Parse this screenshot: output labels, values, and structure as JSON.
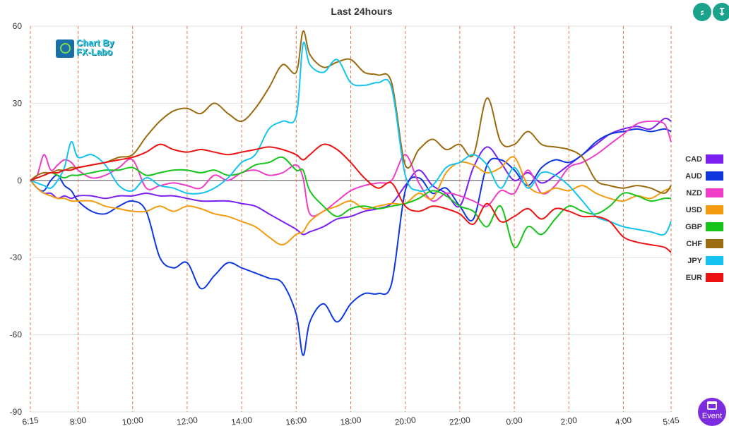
{
  "chart_data": {
    "type": "line",
    "title": "Last 24hours",
    "ylim": [
      -90,
      60
    ],
    "yticks": [
      60,
      30,
      0,
      -30,
      -60,
      -90
    ],
    "xticks": [
      "6:15",
      "8:00",
      "10:00",
      "12:00",
      "14:00",
      "16:00",
      "18:00",
      "20:00",
      "22:00",
      "0:00",
      "2:00",
      "4:00",
      "5:45"
    ],
    "x": [
      "6:15",
      "6:30",
      "6:45",
      "7:00",
      "7:15",
      "7:30",
      "7:45",
      "8:00",
      "8:30",
      "9:00",
      "9:30",
      "10:00",
      "10:30",
      "11:00",
      "11:30",
      "12:00",
      "12:30",
      "13:00",
      "13:30",
      "14:00",
      "14:30",
      "15:00",
      "15:30",
      "16:00",
      "16:15",
      "16:30",
      "17:00",
      "17:30",
      "18:00",
      "18:30",
      "19:00",
      "19:30",
      "20:00",
      "20:30",
      "21:00",
      "21:30",
      "22:00",
      "22:30",
      "23:00",
      "23:30",
      "0:00",
      "0:30",
      "1:00",
      "1:30",
      "2:00",
      "2:30",
      "3:00",
      "3:30",
      "4:00",
      "4:30",
      "5:00",
      "5:30",
      "5:45"
    ],
    "grid": true,
    "legend": "right",
    "series": [
      {
        "name": "CAD",
        "color": "#7b1ff0",
        "values": [
          0,
          -3,
          -5,
          -5,
          -7,
          -6,
          -7,
          -6,
          -6,
          -7,
          -6,
          -6,
          -5,
          -6,
          -6,
          -7,
          -8,
          -8,
          -8,
          -9,
          -10,
          -13,
          -16,
          -19,
          -21,
          -20,
          -18,
          -15,
          -14,
          -12,
          -11,
          -9,
          -2,
          4,
          -2,
          -5,
          -10,
          5,
          13,
          7,
          0,
          3,
          -1,
          2,
          6,
          10,
          14,
          18,
          20,
          21,
          20,
          24,
          23
        ]
      },
      {
        "name": "AUD",
        "color": "#0f37e0",
        "values": [
          0,
          -3,
          -4,
          0,
          2,
          -2,
          -4,
          -8,
          -12,
          -13,
          -10,
          -8,
          -12,
          -30,
          -34,
          -32,
          -42,
          -37,
          -32,
          -34,
          -36,
          -38,
          -40,
          -52,
          -68,
          -55,
          -48,
          -55,
          -48,
          -44,
          -44,
          -40,
          -4,
          1,
          -5,
          -3,
          -10,
          -15,
          6,
          8,
          4,
          -2,
          5,
          8,
          7,
          10,
          15,
          18,
          19,
          20,
          19,
          20,
          19
        ]
      },
      {
        "name": "NZD",
        "color": "#f03cc8",
        "values": [
          0,
          2,
          10,
          4,
          6,
          8,
          7,
          4,
          1,
          2,
          5,
          8,
          -3,
          -2,
          -1,
          -2,
          -3,
          2,
          0,
          3,
          4,
          2,
          3,
          6,
          1,
          -13,
          -12,
          -8,
          -4,
          -2,
          -1,
          0,
          10,
          -1,
          -8,
          -5,
          -6,
          -8,
          -10,
          -4,
          -5,
          4,
          -5,
          -2,
          5,
          7,
          10,
          14,
          18,
          22,
          23,
          22,
          15
        ]
      },
      {
        "name": "USD",
        "color": "#f59b0f",
        "values": [
          0,
          -3,
          -5,
          -6,
          -7,
          -7,
          -8,
          -8,
          -8,
          -10,
          -11,
          -12,
          -12,
          -10,
          -12,
          -10,
          -11,
          -13,
          -14,
          -16,
          -18,
          -22,
          -25,
          -21,
          -20,
          -16,
          -12,
          -10,
          -8,
          -11,
          -10,
          -9,
          -9,
          -5,
          -7,
          3,
          7,
          6,
          3,
          5,
          9,
          -2,
          -5,
          -3,
          -4,
          -2,
          -5,
          -7,
          -8,
          -6,
          -7,
          -4,
          -3
        ]
      },
      {
        "name": "GBP",
        "color": "#16c41a",
        "values": [
          0,
          1,
          2,
          3,
          2,
          1,
          2,
          2,
          3,
          4,
          4,
          5,
          2,
          3,
          4,
          4,
          3,
          4,
          2,
          3,
          6,
          7,
          9,
          4,
          4,
          -4,
          -10,
          -14,
          -11,
          -10,
          -11,
          -10,
          -9,
          -7,
          -4,
          -6,
          -10,
          -12,
          -18,
          -10,
          -26,
          -18,
          -21,
          -15,
          -10,
          -12,
          -13,
          -10,
          -5,
          -6,
          -8,
          -7,
          -7
        ]
      },
      {
        "name": "CHF",
        "color": "#9a6b0f",
        "values": [
          0,
          2,
          3,
          3,
          4,
          4,
          5,
          5,
          6,
          7,
          9,
          10,
          17,
          23,
          27,
          28,
          26,
          30,
          26,
          23,
          28,
          36,
          45,
          42,
          58,
          49,
          44,
          46,
          47,
          42,
          41,
          38,
          6,
          12,
          16,
          12,
          14,
          10,
          32,
          15,
          14,
          19,
          14,
          13,
          12,
          9,
          0,
          -2,
          -3,
          -2,
          -3,
          -5,
          -2
        ]
      },
      {
        "name": "JPY",
        "color": "#14c3f0",
        "values": [
          0,
          -1,
          -2,
          -3,
          0,
          5,
          15,
          9,
          10,
          6,
          -2,
          -4,
          1,
          -2,
          -3,
          -5,
          -5,
          -3,
          1,
          7,
          10,
          20,
          23,
          25,
          53,
          45,
          42,
          47,
          38,
          37,
          38,
          36,
          2,
          -4,
          -2,
          5,
          7,
          10,
          6,
          -3,
          5,
          -3,
          3,
          2,
          -2,
          -8,
          -14,
          -16,
          -18,
          -19,
          -20,
          -21,
          -16
        ]
      },
      {
        "name": "EUR",
        "color": "#ee1111",
        "values": [
          0,
          1,
          2,
          3,
          3,
          4,
          4,
          5,
          6,
          7,
          8,
          9,
          11,
          14,
          12,
          11,
          12,
          11,
          10,
          11,
          12,
          13,
          12,
          10,
          8,
          10,
          14,
          12,
          7,
          1,
          -3,
          -1,
          -10,
          -12,
          -10,
          -11,
          -13,
          -17,
          -9,
          -16,
          -14,
          -11,
          -15,
          -11,
          -12,
          -14,
          -14,
          -16,
          -22,
          -24,
          -25,
          -26,
          -28
        ]
      }
    ]
  },
  "logo": {
    "line1": "Chart By",
    "line2": "FX-Labo"
  },
  "controls": {
    "zoom_fit_icon": "⸗",
    "zoom_full_icon": "↧",
    "event_label": "Event"
  }
}
